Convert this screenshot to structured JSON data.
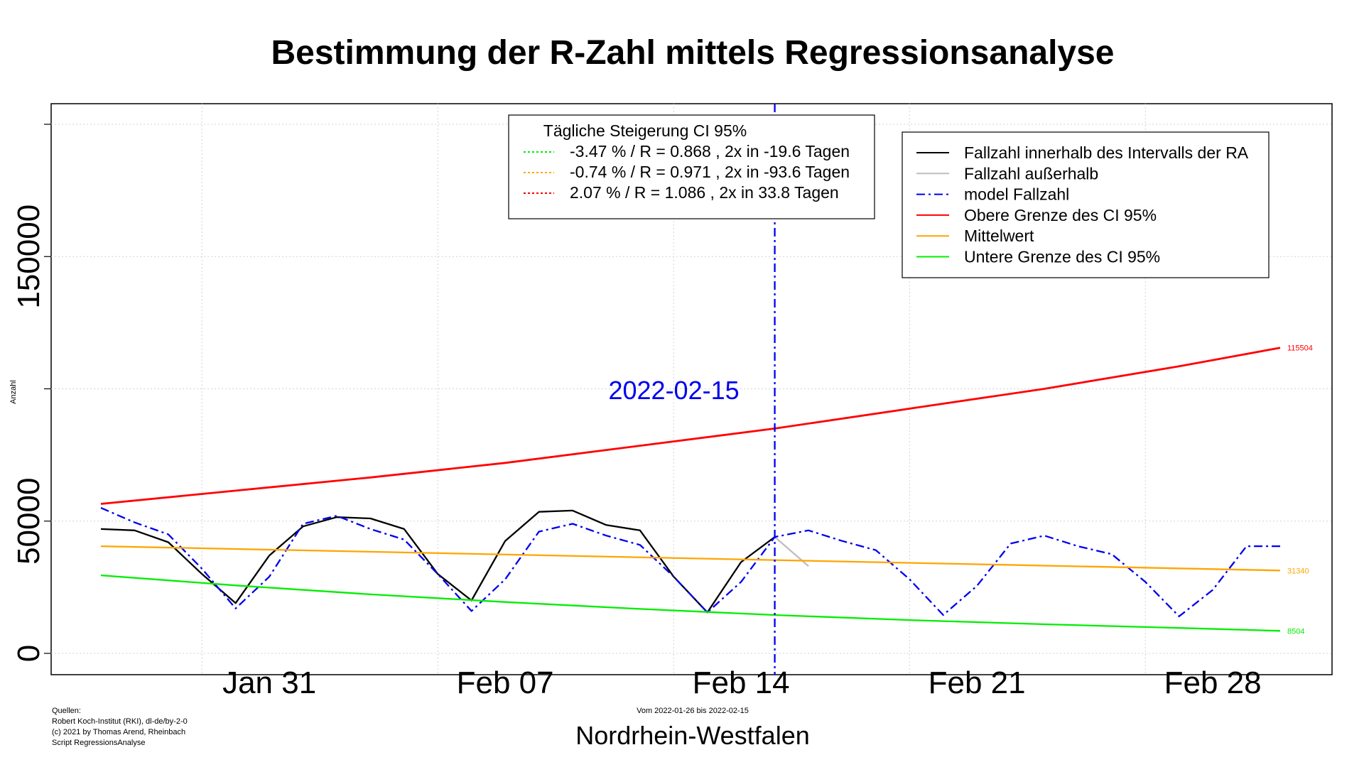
{
  "chart_data": {
    "type": "line",
    "title": "Bestimmung der R-Zahl mittels Regressionsanalyse",
    "ylabel": "Anzahl",
    "region": "Nordrhein-Westfalen",
    "range_note": "Vom 2022-01-26 bis 2022-02-15",
    "sources": [
      "Quellen:",
      "Robert Koch-Institut (RKI), dl-de/by-2-0",
      "(c) 2021 by Thomas Arend, Rheinbach",
      "Script RegressionsAnalyse"
    ],
    "ylim": [
      0,
      200000
    ],
    "xlim": [
      "2022-01-26",
      "2022-03-02"
    ],
    "yticks": [
      0,
      50000,
      150000
    ],
    "xticks": [
      {
        "date": "2022-01-31",
        "label": "Jan 31"
      },
      {
        "date": "2022-02-07",
        "label": "Feb 07"
      },
      {
        "date": "2022-02-14",
        "label": "Feb 14"
      },
      {
        "date": "2022-02-21",
        "label": "Feb 21"
      },
      {
        "date": "2022-02-28",
        "label": "Feb 28"
      }
    ],
    "grid": true,
    "vline": {
      "date": "2022-02-15",
      "label": "2022-02-15",
      "color": "#0000ee"
    },
    "series": [
      {
        "name": "Fallzahl innerhalb des Intervalls der RA",
        "color": "#000000",
        "dash": "solid",
        "x": [
          "2022-01-26",
          "2022-01-27",
          "2022-01-28",
          "2022-01-29",
          "2022-01-30",
          "2022-01-31",
          "2022-02-01",
          "2022-02-02",
          "2022-02-03",
          "2022-02-04",
          "2022-02-05",
          "2022-02-06",
          "2022-02-07",
          "2022-02-08",
          "2022-02-09",
          "2022-02-10",
          "2022-02-11",
          "2022-02-12",
          "2022-02-13",
          "2022-02-14",
          "2022-02-15"
        ],
        "y": [
          47000,
          46500,
          42000,
          30000,
          19000,
          37000,
          48000,
          51500,
          51000,
          47000,
          30000,
          20000,
          42500,
          53500,
          54000,
          48500,
          46500,
          29000,
          15500,
          34500,
          44000
        ]
      },
      {
        "name": "Fallzahl außerhalb",
        "color": "#bebebe",
        "dash": "solid",
        "x": [
          "2022-02-15",
          "2022-02-16"
        ],
        "y": [
          44000,
          33000
        ]
      },
      {
        "name": "model Fallzahl",
        "color": "#0000ee",
        "dash": "dashdot",
        "x": [
          "2022-01-26",
          "2022-01-27",
          "2022-01-28",
          "2022-01-29",
          "2022-01-30",
          "2022-01-31",
          "2022-02-01",
          "2022-02-02",
          "2022-02-03",
          "2022-02-04",
          "2022-02-05",
          "2022-02-06",
          "2022-02-07",
          "2022-02-08",
          "2022-02-09",
          "2022-02-10",
          "2022-02-11",
          "2022-02-12",
          "2022-02-13",
          "2022-02-14",
          "2022-02-15",
          "2022-02-16",
          "2022-02-17",
          "2022-02-18",
          "2022-02-19",
          "2022-02-20",
          "2022-02-21",
          "2022-02-22",
          "2022-02-23",
          "2022-02-24",
          "2022-02-25",
          "2022-02-26",
          "2022-02-27",
          "2022-02-28",
          "2022-03-01",
          "2022-03-02"
        ],
        "y": [
          55000,
          49500,
          45000,
          32000,
          17000,
          29000,
          49000,
          52000,
          47000,
          43000,
          30000,
          16000,
          28000,
          46000,
          49000,
          44500,
          41000,
          29000,
          15500,
          27000,
          44000,
          46500,
          42500,
          39000,
          28000,
          14500,
          25500,
          41500,
          44500,
          40500,
          37500,
          27000,
          14000,
          24000,
          40500,
          40500
        ]
      },
      {
        "name": "Obere Grenze des CI 95%",
        "color": "#ff0000",
        "dash": "solid",
        "x": [
          "2022-01-26",
          "2022-01-30",
          "2022-02-03",
          "2022-02-07",
          "2022-02-11",
          "2022-02-15",
          "2022-02-19",
          "2022-02-23",
          "2022-02-27",
          "2022-03-02"
        ],
        "y": [
          56500,
          61500,
          66500,
          72000,
          78500,
          85000,
          92500,
          100000,
          108500,
          115504
        ]
      },
      {
        "name": "Mittelwert",
        "color": "#ffa500",
        "dash": "solid",
        "x": [
          "2022-01-26",
          "2022-03-02"
        ],
        "y": [
          40500,
          31340
        ]
      },
      {
        "name": "Untere Grenze des CI 95%",
        "color": "#00ee00",
        "dash": "solid",
        "x": [
          "2022-01-26",
          "2022-01-30",
          "2022-02-03",
          "2022-02-07",
          "2022-02-11",
          "2022-02-15",
          "2022-02-19",
          "2022-02-23",
          "2022-02-27",
          "2022-03-02"
        ],
        "y": [
          29500,
          25700,
          22300,
          19400,
          16800,
          14500,
          12600,
          11000,
          9600,
          8504
        ]
      }
    ],
    "end_labels": [
      {
        "text": "115504",
        "series": "Obere Grenze des CI 95%",
        "color": "#ff0000"
      },
      {
        "text": "31340",
        "series": "Mittelwert",
        "color": "#ffa500"
      },
      {
        "text": "8504",
        "series": "Untere Grenze des CI 95%",
        "color": "#00ee00"
      }
    ],
    "legend_ci": {
      "title": "Tägliche Steigerung CI  95%",
      "position": "top-center",
      "entries": [
        {
          "text": "-3.47 % / R = 0.868 , 2x in -19.6 Tagen",
          "color": "#00ee00"
        },
        {
          "text": "-0.74 % / R = 0.971 , 2x in -93.6 Tagen",
          "color": "#ffa500"
        },
        {
          "text": "2.07 % / R = 1.086 , 2x in 33.8 Tagen",
          "color": "#ff0000"
        }
      ]
    },
    "legend_main": {
      "position": "top-right",
      "entries": [
        {
          "text": "Fallzahl innerhalb des Intervalls der RA",
          "color": "#000000",
          "dash": "solid"
        },
        {
          "text": "Fallzahl außerhalb",
          "color": "#bebebe",
          "dash": "solid"
        },
        {
          "text": "model Fallzahl",
          "color": "#0000ee",
          "dash": "dashdot"
        },
        {
          "text": "Obere Grenze des CI 95%",
          "color": "#ff0000",
          "dash": "solid"
        },
        {
          "text": "Mittelwert",
          "color": "#ffa500",
          "dash": "solid"
        },
        {
          "text": "Untere Grenze des CI 95%",
          "color": "#00ee00",
          "dash": "solid"
        }
      ]
    }
  }
}
